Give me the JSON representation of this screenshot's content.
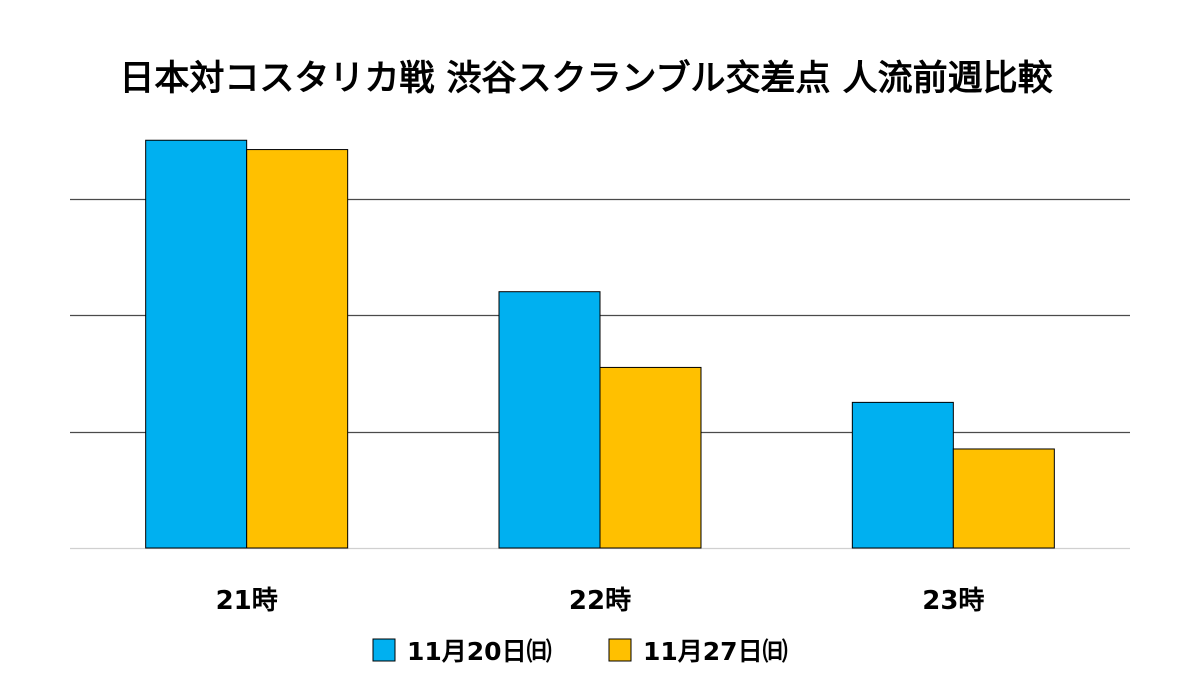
{
  "chart_data": {
    "type": "bar",
    "title": "日本対コスタリカ戦 渋谷スクランブル交差点 人流前週比較",
    "xlabel": "",
    "ylabel": "",
    "categories": [
      "21時",
      "22時",
      "23時"
    ],
    "series": [
      {
        "name": "11月20日㈰",
        "color": "#00B0F0",
        "values": [
          3.5,
          2.2,
          1.25
        ]
      },
      {
        "name": "11月27日㈰",
        "color": "#FFC000",
        "values": [
          3.42,
          1.55,
          0.85
        ]
      }
    ],
    "ylim": [
      0,
      4
    ],
    "yticks": [
      0,
      1,
      2,
      3
    ],
    "grid": true,
    "ytick_labels_shown": false,
    "legend_position": "bottom"
  }
}
